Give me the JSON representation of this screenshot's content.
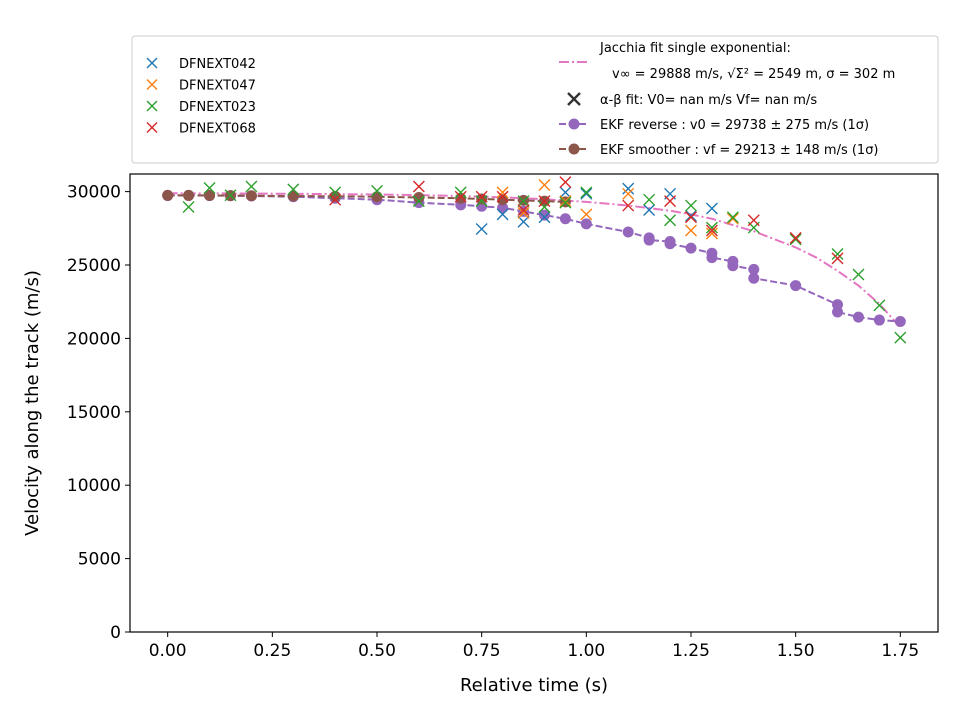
{
  "chart_data": {
    "type": "scatter",
    "title": "",
    "xlabel": "Relative time (s)",
    "ylabel": "Velocity along the track (m/s)",
    "xlim": [
      -0.09,
      1.84
    ],
    "ylim": [
      0,
      31200
    ],
    "xticks": [
      "0.00",
      "0.25",
      "0.50",
      "0.75",
      "1.00",
      "1.25",
      "1.50",
      "1.75"
    ],
    "yticks": [
      "0",
      "5000",
      "10000",
      "15000",
      "20000",
      "25000",
      "30000"
    ],
    "grid": false,
    "legend_placement": "above-plot",
    "series": [
      {
        "name": "DFNEXT042",
        "kind": "x-marker",
        "color": "#1f77b4",
        "points": [
          [
            0.75,
            27450
          ],
          [
            0.8,
            28450
          ],
          [
            0.85,
            27950
          ],
          [
            0.9,
            28250
          ],
          [
            0.95,
            29950
          ],
          [
            1.0,
            29850
          ],
          [
            1.1,
            30200
          ],
          [
            1.15,
            28750
          ],
          [
            1.2,
            29850
          ],
          [
            1.25,
            28350
          ],
          [
            1.3,
            28850
          ]
        ]
      },
      {
        "name": "DFNEXT047",
        "kind": "x-marker",
        "color": "#ff7f0e",
        "points": [
          [
            0.8,
            29950
          ],
          [
            0.85,
            28550
          ],
          [
            0.9,
            30450
          ],
          [
            0.95,
            29350
          ],
          [
            1.0,
            28450
          ],
          [
            1.1,
            29850
          ],
          [
            1.25,
            27350
          ],
          [
            1.3,
            27150
          ],
          [
            1.35,
            28150
          ]
        ]
      },
      {
        "name": "DFNEXT023",
        "kind": "x-marker",
        "color": "#2ca02c",
        "points": [
          [
            0.05,
            28950
          ],
          [
            0.1,
            30250
          ],
          [
            0.15,
            29750
          ],
          [
            0.2,
            30350
          ],
          [
            0.3,
            30150
          ],
          [
            0.4,
            29950
          ],
          [
            0.5,
            30050
          ],
          [
            0.6,
            29350
          ],
          [
            0.7,
            29950
          ],
          [
            0.75,
            29350
          ],
          [
            0.85,
            29350
          ],
          [
            0.9,
            28950
          ],
          [
            0.95,
            29250
          ],
          [
            1.0,
            29950
          ],
          [
            1.15,
            29450
          ],
          [
            1.2,
            28050
          ],
          [
            1.25,
            29050
          ],
          [
            1.3,
            27550
          ],
          [
            1.35,
            28250
          ],
          [
            1.4,
            27550
          ],
          [
            1.5,
            26750
          ],
          [
            1.6,
            25750
          ],
          [
            1.65,
            24350
          ],
          [
            1.7,
            22250
          ],
          [
            1.75,
            20050
          ]
        ]
      },
      {
        "name": "DFNEXT068",
        "kind": "x-marker",
        "color": "#d62728",
        "points": [
          [
            0.4,
            29450
          ],
          [
            0.6,
            30350
          ],
          [
            0.7,
            29650
          ],
          [
            0.75,
            29650
          ],
          [
            0.8,
            29650
          ],
          [
            0.85,
            28750
          ],
          [
            0.9,
            29350
          ],
          [
            0.95,
            30650
          ],
          [
            1.1,
            29050
          ],
          [
            1.2,
            29350
          ],
          [
            1.25,
            28250
          ],
          [
            1.3,
            27350
          ],
          [
            1.4,
            28050
          ],
          [
            1.5,
            26850
          ],
          [
            1.6,
            25450
          ]
        ]
      },
      {
        "name": "α-β fit: V0= nan m/s   Vf= nan m/s",
        "kind": "x-marker",
        "color": "#333333",
        "points": []
      },
      {
        "name": "EKF reverse : v0 =  29738 ± 275 m/s (1σ)",
        "kind": "line-dot",
        "color": "#9467bd",
        "points": [
          [
            0.0,
            29740
          ],
          [
            0.05,
            29740
          ],
          [
            0.1,
            29730
          ],
          [
            0.15,
            29720
          ],
          [
            0.2,
            29700
          ],
          [
            0.3,
            29650
          ],
          [
            0.4,
            29550
          ],
          [
            0.5,
            29450
          ],
          [
            0.6,
            29250
          ],
          [
            0.7,
            29100
          ],
          [
            0.75,
            29000
          ],
          [
            0.8,
            28900
          ],
          [
            0.85,
            28650
          ],
          [
            0.9,
            28400
          ],
          [
            0.95,
            28150
          ],
          [
            1.0,
            27800
          ],
          [
            1.1,
            27250
          ],
          [
            1.15,
            26850
          ],
          [
            1.15,
            26700
          ],
          [
            1.2,
            26600
          ],
          [
            1.2,
            26450
          ],
          [
            1.25,
            26150
          ],
          [
            1.3,
            25800
          ],
          [
            1.3,
            25500
          ],
          [
            1.35,
            25250
          ],
          [
            1.35,
            24950
          ],
          [
            1.4,
            24700
          ],
          [
            1.4,
            24100
          ],
          [
            1.5,
            23600
          ],
          [
            1.6,
            22300
          ],
          [
            1.6,
            21800
          ],
          [
            1.65,
            21450
          ],
          [
            1.7,
            21250
          ],
          [
            1.75,
            21150
          ]
        ]
      },
      {
        "name": "EKF smoother : vf =  29213 ± 148 m/s (1σ)",
        "kind": "line-dot",
        "color": "#8c564b",
        "points": [
          [
            0.0,
            29740
          ],
          [
            0.05,
            29740
          ],
          [
            0.1,
            29740
          ],
          [
            0.15,
            29730
          ],
          [
            0.2,
            29720
          ],
          [
            0.3,
            29700
          ],
          [
            0.4,
            29680
          ],
          [
            0.5,
            29650
          ],
          [
            0.6,
            29600
          ],
          [
            0.7,
            29550
          ],
          [
            0.75,
            29500
          ],
          [
            0.8,
            29450
          ],
          [
            0.85,
            29400
          ],
          [
            0.9,
            29350
          ],
          [
            0.95,
            29300
          ]
        ]
      }
    ],
    "fit_curve": {
      "name": "Jacchia fit single exponential:",
      "name_line2": "v∞ = 29888 m/s, √Σ² = 2549 m, σ = 302 m",
      "color": "#e377c2",
      "points": [
        [
          0.0,
          29888
        ],
        [
          0.1,
          29880
        ],
        [
          0.2,
          29870
        ],
        [
          0.3,
          29850
        ],
        [
          0.4,
          29830
        ],
        [
          0.5,
          29800
        ],
        [
          0.6,
          29760
        ],
        [
          0.7,
          29700
        ],
        [
          0.8,
          29610
        ],
        [
          0.9,
          29480
        ],
        [
          1.0,
          29300
        ],
        [
          1.1,
          29050
        ],
        [
          1.2,
          28700
        ],
        [
          1.25,
          28450
        ],
        [
          1.3,
          28150
        ],
        [
          1.4,
          27300
        ],
        [
          1.5,
          26200
        ],
        [
          1.55,
          25500
        ],
        [
          1.6,
          24600
        ],
        [
          1.65,
          23600
        ],
        [
          1.7,
          22350
        ],
        [
          1.75,
          20750
        ]
      ]
    }
  }
}
